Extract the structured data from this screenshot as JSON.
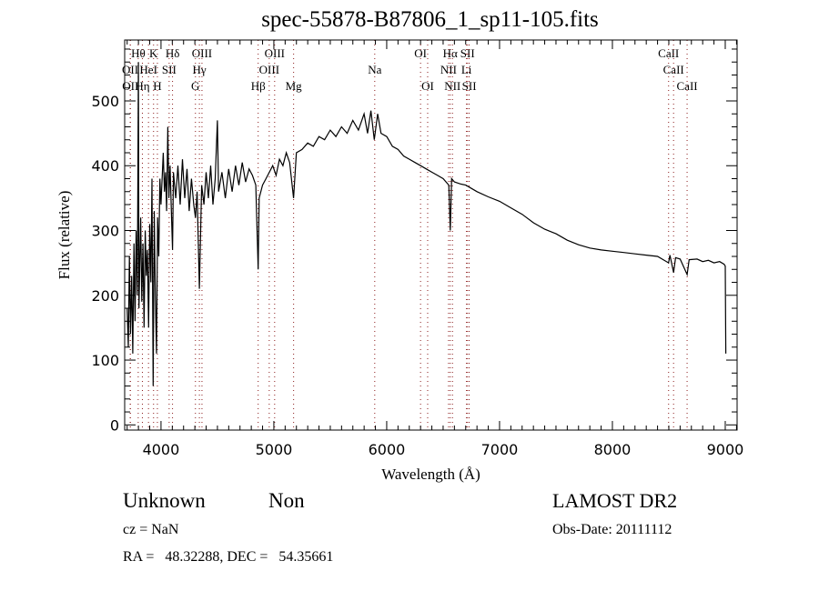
{
  "chart_data": {
    "type": "line",
    "title": "spec-55878-B87806_1_sp11-105.fits",
    "xlabel": "Wavelength (Å)",
    "ylabel": "Flux (relative)",
    "xlim": [
      3678,
      9105
    ],
    "ylim": [
      -8,
      594
    ],
    "xticks": [
      4000,
      5000,
      6000,
      7000,
      8000,
      9000
    ],
    "yticks": [
      0,
      100,
      200,
      300,
      400,
      500
    ],
    "grid": false,
    "series": [
      {
        "name": "spectrum",
        "x": [
          3700,
          3710,
          3720,
          3730,
          3740,
          3750,
          3760,
          3770,
          3780,
          3790,
          3800,
          3805,
          3820,
          3830,
          3840,
          3850,
          3860,
          3870,
          3880,
          3890,
          3900,
          3910,
          3920,
          3930,
          3940,
          3950,
          3960,
          3970,
          3980,
          3990,
          4000,
          4020,
          4030,
          4040,
          4050,
          4060,
          4070,
          4080,
          4090,
          4102,
          4110,
          4130,
          4150,
          4170,
          4190,
          4210,
          4230,
          4250,
          4270,
          4290,
          4305,
          4320,
          4340,
          4360,
          4380,
          4400,
          4420,
          4440,
          4460,
          4480,
          4500,
          4510,
          4540,
          4570,
          4600,
          4630,
          4660,
          4690,
          4720,
          4750,
          4780,
          4810,
          4840,
          4861,
          4870,
          4900,
          4930,
          4960,
          4990,
          5020,
          5050,
          5080,
          5110,
          5140,
          5175,
          5200,
          5250,
          5300,
          5350,
          5400,
          5450,
          5500,
          5550,
          5600,
          5650,
          5700,
          5750,
          5800,
          5830,
          5860,
          5890,
          5920,
          5950,
          6000,
          6050,
          6100,
          6150,
          6200,
          6250,
          6300,
          6350,
          6400,
          6450,
          6500,
          6550,
          6563,
          6575,
          6600,
          6650,
          6700,
          6750,
          6800,
          6900,
          7000,
          7100,
          7200,
          7300,
          7400,
          7500,
          7600,
          7700,
          7800,
          7900,
          8000,
          8100,
          8200,
          8300,
          8400,
          8498,
          8510,
          8542,
          8560,
          8600,
          8662,
          8680,
          8750,
          8800,
          8850,
          8900,
          8950,
          8990,
          9000,
          9005
        ],
        "y": [
          180,
          120,
          260,
          140,
          230,
          110,
          280,
          160,
          300,
          200,
          560,
          180,
          320,
          190,
          280,
          150,
          300,
          230,
          270,
          150,
          310,
          220,
          380,
          60,
          330,
          200,
          110,
          320,
          260,
          380,
          340,
          420,
          360,
          390,
          330,
          460,
          350,
          400,
          340,
          270,
          390,
          350,
          400,
          340,
          410,
          350,
          395,
          330,
          380,
          340,
          320,
          360,
          210,
          370,
          340,
          390,
          350,
          400,
          340,
          380,
          470,
          360,
          390,
          350,
          395,
          360,
          400,
          370,
          405,
          375,
          395,
          385,
          370,
          240,
          350,
          370,
          380,
          390,
          400,
          385,
          410,
          400,
          420,
          405,
          350,
          420,
          425,
          435,
          430,
          445,
          440,
          455,
          445,
          460,
          450,
          470,
          455,
          480,
          450,
          485,
          440,
          480,
          450,
          445,
          430,
          425,
          415,
          410,
          405,
          400,
          395,
          390,
          385,
          380,
          370,
          300,
          380,
          375,
          372,
          370,
          365,
          360,
          352,
          345,
          335,
          325,
          312,
          302,
          295,
          285,
          278,
          273,
          270,
          268,
          266,
          264,
          262,
          260,
          250,
          262,
          235,
          258,
          256,
          232,
          255,
          256,
          252,
          254,
          250,
          252,
          248,
          245,
          110
        ]
      }
    ],
    "line_markers": [
      {
        "label": "Hθ",
        "wave": 3798,
        "tier": 0
      },
      {
        "label": "K",
        "wave": 3934,
        "tier": 0
      },
      {
        "label": "Hδ",
        "wave": 4102,
        "tier": 0
      },
      {
        "label": "OIII",
        "wave": 4363,
        "tier": 0
      },
      {
        "label": "OIII",
        "wave": 5007,
        "tier": 0
      },
      {
        "label": "OI",
        "wave": 6300,
        "tier": 0
      },
      {
        "label": "Hα",
        "wave": 6563,
        "tier": 0
      },
      {
        "label": "SII",
        "wave": 6716,
        "tier": 0
      },
      {
        "label": "CaII",
        "wave": 8498,
        "tier": 0
      },
      {
        "label": "OII",
        "wave": 3727,
        "tier": 1
      },
      {
        "label": "HeI",
        "wave": 3889,
        "tier": 1
      },
      {
        "label": "SII",
        "wave": 4072,
        "tier": 1
      },
      {
        "label": "Hγ",
        "wave": 4340,
        "tier": 1
      },
      {
        "label": "OIII",
        "wave": 4959,
        "tier": 1
      },
      {
        "label": "Na",
        "wave": 5894,
        "tier": 1
      },
      {
        "label": "NII",
        "wave": 6548,
        "tier": 1
      },
      {
        "label": "Li",
        "wave": 6707,
        "tier": 1
      },
      {
        "label": "CaII",
        "wave": 8542,
        "tier": 1
      },
      {
        "label": "OII",
        "wave": 3729,
        "tier": 2
      },
      {
        "label": "Hη",
        "wave": 3835,
        "tier": 2
      },
      {
        "label": "H",
        "wave": 3968,
        "tier": 2
      },
      {
        "label": "G",
        "wave": 4305,
        "tier": 2
      },
      {
        "label": "Hβ",
        "wave": 4861,
        "tier": 2
      },
      {
        "label": "Mg",
        "wave": 5175,
        "tier": 2
      },
      {
        "label": "OI",
        "wave": 6363,
        "tier": 2
      },
      {
        "label": "NII",
        "wave": 6583,
        "tier": 2
      },
      {
        "label": "SII",
        "wave": 6731,
        "tier": 2
      },
      {
        "label": "CaII",
        "wave": 8662,
        "tier": 2
      }
    ],
    "marker_color": "#8b1a1a"
  },
  "info": {
    "class": "Unknown",
    "subclass": "Non",
    "survey": "LAMOST DR2",
    "cz": "cz = NaN",
    "obs_date": "Obs-Date: 20111112",
    "radec": "RA =   48.32288, DEC =   54.35661"
  }
}
